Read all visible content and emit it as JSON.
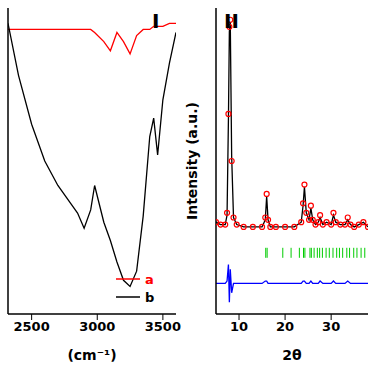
{
  "chart_data": [
    {
      "type": "line",
      "title": "I",
      "xlabel": "(cm⁻¹)",
      "x": [
        2320,
        2400,
        2500,
        2600,
        2700,
        2800,
        2850,
        2900,
        2950,
        2980,
        3050,
        3100,
        3150,
        3200,
        3250,
        3300,
        3350,
        3400,
        3430,
        3460,
        3500,
        3550,
        3600
      ],
      "series": [
        {
          "name": "a",
          "color": "#ff0000",
          "values": [
            93,
            93,
            93,
            93,
            93,
            93,
            93,
            93,
            93,
            92,
            89,
            86,
            92,
            89,
            85,
            91,
            93,
            93,
            94,
            94,
            94,
            95,
            95
          ]
        },
        {
          "name": "b",
          "color": "#000000",
          "values": [
            95,
            78,
            62,
            50,
            42,
            36,
            33,
            28,
            34,
            42,
            30,
            24,
            17,
            11,
            9,
            14,
            32,
            58,
            64,
            52,
            70,
            82,
            92
          ]
        }
      ],
      "xlim": [
        2320,
        3600
      ],
      "xticks": [
        2500,
        3000,
        3500
      ],
      "ylim": [
        0,
        100
      ],
      "tick_labels": "x",
      "legend": "lower right",
      "grid": false
    },
    {
      "type": "scatter",
      "title": "II",
      "xlabel": "2θ",
      "ylabel": "Intensity (a.u.)",
      "x": [
        5,
        6,
        7,
        7.4,
        7.7,
        7.9,
        8.1,
        8.4,
        8.8,
        9.5,
        11,
        13,
        15,
        15.7,
        16,
        16.3,
        16.8,
        18,
        20,
        22,
        23.5,
        23.9,
        24.2,
        24.6,
        25.2,
        25.6,
        26,
        26.6,
        27.2,
        27.6,
        28.2,
        29,
        30,
        30.5,
        31,
        32,
        33,
        33.6,
        34.2,
        35,
        36,
        37,
        38
      ],
      "series": [
        {
          "type": "line",
          "color": "#000000",
          "values": [
            14,
            13,
            13,
            17,
            58,
            95,
            99,
            42,
            16,
            13,
            12,
            12,
            12,
            15,
            25,
            15,
            12,
            12,
            12,
            12,
            14,
            21,
            29,
            18,
            15,
            20,
            15,
            13,
            14,
            16,
            13,
            14,
            13,
            17,
            14,
            13,
            13,
            15,
            13,
            12,
            13,
            14,
            12
          ]
        },
        {
          "type": "scatter",
          "marker": "circle",
          "color": "#ff0000",
          "values": [
            14,
            13,
            13,
            18,
            60,
            97,
            100,
            40,
            16,
            13,
            12,
            12,
            12,
            16,
            26,
            15,
            12,
            12,
            12,
            12,
            14,
            22,
            30,
            18,
            15,
            21,
            15,
            13,
            14,
            17,
            13,
            14,
            13,
            18,
            14,
            13,
            13,
            16,
            13,
            12,
            13,
            14,
            12
          ]
        },
        {
          "type": "line",
          "color": "#0000ff",
          "values": [
            -12,
            -12,
            -12,
            -11,
            -4,
            -20,
            -6,
            -16,
            -12,
            -12,
            -12,
            -12,
            -12,
            -11,
            -11,
            -12,
            -12,
            -12,
            -12,
            -12,
            -12,
            -11,
            -11,
            -12,
            -12,
            -11,
            -12,
            -12,
            -12,
            -11,
            -12,
            -12,
            -12,
            -11,
            -12,
            -12,
            -12,
            -11,
            -12,
            -12,
            -12,
            -12,
            -12
          ]
        },
        {
          "type": "scatter",
          "marker": "|",
          "color": "#00cc00",
          "x": [
            15.8,
            16.1,
            19.5,
            21.3,
            23.1,
            24.0,
            24.3,
            25.4,
            25.7,
            26.3,
            27.0,
            27.5,
            28.1,
            28.9,
            29.6,
            30.4,
            31.2,
            31.8,
            32.5,
            33.4,
            34.0,
            34.9,
            35.6,
            36.5,
            37.3
          ],
          "values": [
            1,
            1,
            1,
            1,
            1,
            1,
            1,
            1,
            1,
            1,
            1,
            1,
            1,
            1,
            1,
            1,
            1,
            1,
            1,
            1,
            1,
            1,
            1,
            1,
            1
          ]
        }
      ],
      "xlim": [
        5,
        38
      ],
      "xticks": [
        10,
        20,
        30
      ],
      "ylim": [
        -25,
        105
      ],
      "tick_labels": "x",
      "grid": false
    }
  ]
}
